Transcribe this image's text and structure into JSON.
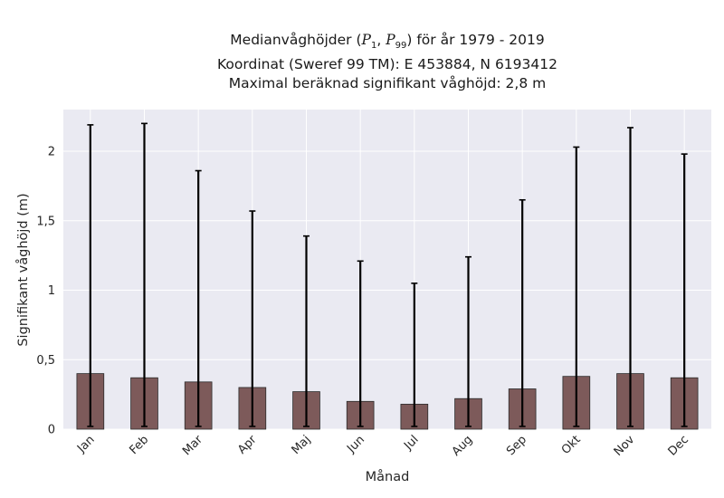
{
  "chart_data": {
    "type": "bar",
    "title_prefix": "Medianvåghöjder (",
    "title_math": {
      "p": "P",
      "sub1": "1",
      "sep": ", ",
      "sub2": "99"
    },
    "title_suffix": ") för år 1979 - 2019",
    "subtitle1": "Koordinat (Sweref 99 TM): E 453884, N 6193412",
    "subtitle2": "Maximal beräknad signifikant våghöjd: 2,8 m",
    "xlabel": "Månad",
    "ylabel": "Signifikant våghöjd (m)",
    "ylim": [
      0,
      2.3
    ],
    "yticks": [
      0,
      0.5,
      1,
      1.5,
      2
    ],
    "ytick_labels": [
      "0",
      "0,5",
      "1",
      "1,5",
      "2"
    ],
    "grid": true,
    "categories": [
      "Jan",
      "Feb",
      "Mar",
      "Apr",
      "Maj",
      "Jun",
      "Jul",
      "Aug",
      "Sep",
      "Okt",
      "Nov",
      "Dec"
    ],
    "values": [
      0.4,
      0.37,
      0.34,
      0.3,
      0.27,
      0.2,
      0.18,
      0.22,
      0.29,
      0.38,
      0.4,
      0.37
    ],
    "p1": [
      0.02,
      0.02,
      0.02,
      0.02,
      0.02,
      0.02,
      0.02,
      0.02,
      0.02,
      0.02,
      0.02,
      0.02
    ],
    "p99": [
      2.19,
      2.2,
      1.86,
      1.57,
      1.39,
      1.21,
      1.05,
      1.24,
      1.65,
      2.03,
      2.17,
      1.98
    ],
    "colors": {
      "bar": "#7d5a5a",
      "bar_edge": "#2b2b2b",
      "errorbar": "#000000",
      "plot_bg": "#eaeaf2",
      "grid": "#ffffff"
    }
  }
}
